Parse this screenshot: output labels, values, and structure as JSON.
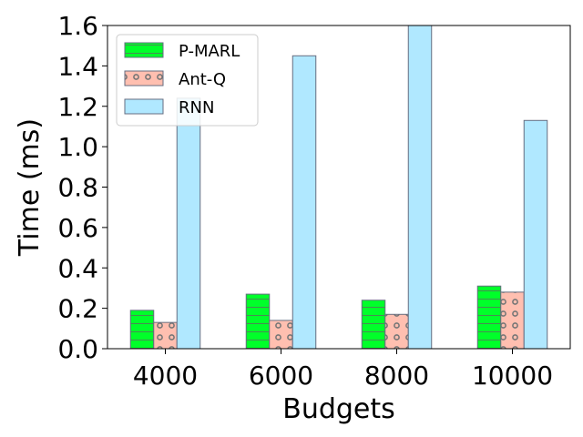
{
  "chart_data": {
    "type": "bar",
    "title": "",
    "xlabel": "Budgets",
    "ylabel": "Time (ms)",
    "categories": [
      "4000",
      "6000",
      "8000",
      "10000"
    ],
    "ylim": [
      0,
      1.6
    ],
    "yticks": [
      "0.0",
      "0.2",
      "0.4",
      "0.6",
      "0.8",
      "1.0",
      "1.2",
      "1.4",
      "1.6"
    ],
    "grid": false,
    "legend_position": "top-left",
    "series": [
      {
        "name": "P-MARL",
        "values": [
          0.19,
          0.27,
          0.24,
          0.31
        ],
        "color": "#00ff2a",
        "pattern": "horizontal-lines"
      },
      {
        "name": "Ant-Q",
        "values": [
          0.13,
          0.14,
          0.17,
          0.28
        ],
        "color": "#ffbfb0",
        "pattern": "circles"
      },
      {
        "name": "RNN",
        "values": [
          1.24,
          1.45,
          1.62,
          1.13
        ],
        "color": "#b0e8ff",
        "pattern": "none"
      }
    ]
  }
}
